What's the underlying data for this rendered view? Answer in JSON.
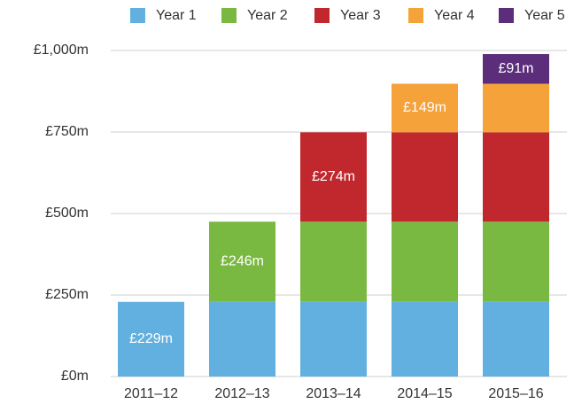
{
  "chart_data": {
    "type": "stacked_bar",
    "categories": [
      "2011–12",
      "2012–13",
      "2013–14",
      "2014–15",
      "2015–16"
    ],
    "series": [
      {
        "name": "Year 1",
        "color": "#62b0e0",
        "values": [
          229,
          229,
          229,
          229,
          229
        ],
        "value_labels": [
          "£229m",
          null,
          null,
          null,
          null
        ]
      },
      {
        "name": "Year 2",
        "color": "#7ab941",
        "values": [
          null,
          246,
          246,
          246,
          246
        ],
        "value_labels": [
          null,
          "£246m",
          null,
          null,
          null
        ]
      },
      {
        "name": "Year 3",
        "color": "#c0282e",
        "values": [
          null,
          null,
          274,
          274,
          274
        ],
        "value_labels": [
          null,
          null,
          "£274m",
          null,
          null
        ]
      },
      {
        "name": "Year 4",
        "color": "#f5a23a",
        "values": [
          null,
          null,
          null,
          149,
          149
        ],
        "value_labels": [
          null,
          null,
          null,
          "£149m",
          null
        ]
      },
      {
        "name": "Year 5",
        "color": "#5b2d7a",
        "values": [
          null,
          null,
          null,
          null,
          91
        ],
        "value_labels": [
          null,
          null,
          null,
          null,
          "£91m"
        ]
      }
    ],
    "ylim": [
      0,
      1000
    ],
    "yticks": [
      {
        "value": 0,
        "label": "£0m"
      },
      {
        "value": 250,
        "label": "£250m"
      },
      {
        "value": 500,
        "label": "£500m"
      },
      {
        "value": 750,
        "label": "£750m"
      },
      {
        "value": 1000,
        "label": "£1,000m"
      }
    ],
    "grid": true,
    "legend": "top"
  }
}
